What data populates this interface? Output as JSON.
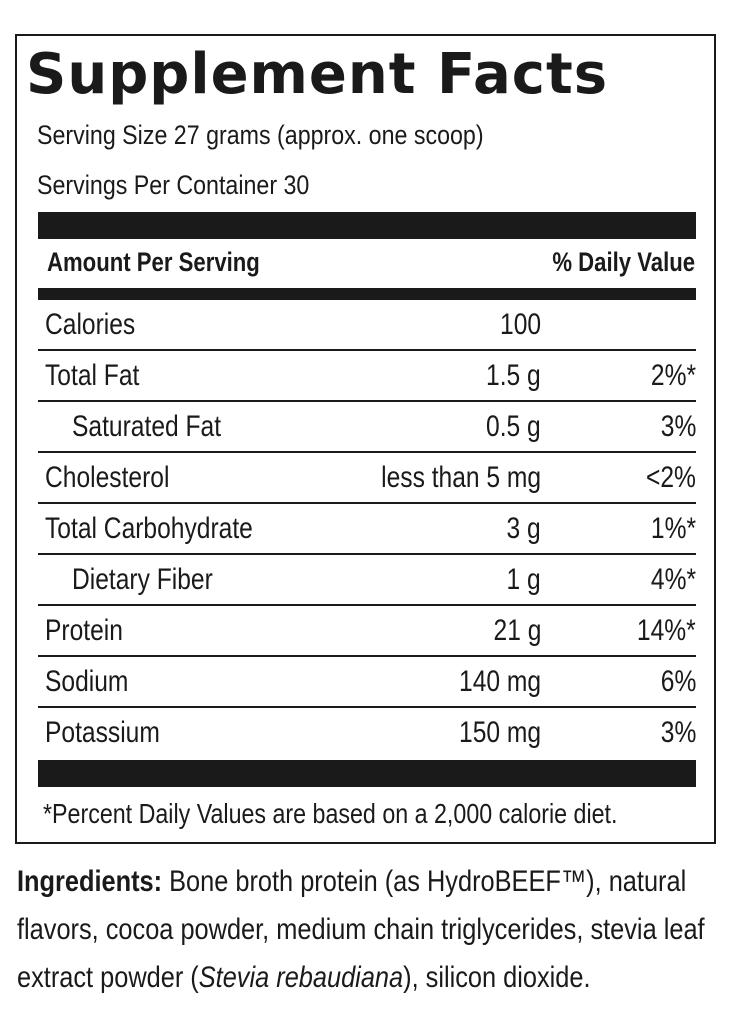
{
  "panel": {
    "title": "Supplement Facts",
    "serving_size": "Serving Size 27 grams (approx. one scoop)",
    "servings_per_container": "Servings Per Container 30",
    "header_left": "Amount Per Serving",
    "header_right": "% Daily Value",
    "rows": [
      {
        "name": "Calories",
        "amount": "100",
        "dv": "",
        "indent": false
      },
      {
        "name": "Total Fat",
        "amount": "1.5 g",
        "dv": "2%*",
        "indent": false
      },
      {
        "name": "Saturated Fat",
        "amount": "0.5 g",
        "dv": "3%",
        "indent": true
      },
      {
        "name": "Cholesterol",
        "amount": "less than 5 mg",
        "dv": "<2%",
        "indent": false
      },
      {
        "name": "Total Carbohydrate",
        "amount": "3 g",
        "dv": "1%*",
        "indent": false
      },
      {
        "name": "Dietary Fiber",
        "amount": "1 g",
        "dv": "4%*",
        "indent": true
      },
      {
        "name": "Protein",
        "amount": "21 g",
        "dv": "14%*",
        "indent": false
      },
      {
        "name": "Sodium",
        "amount": "140 mg",
        "dv": "6%",
        "indent": false
      },
      {
        "name": "Potassium",
        "amount": "150 mg",
        "dv": "3%",
        "indent": false
      }
    ],
    "footnote": "*Percent Daily Values are based on a 2,000 calorie diet."
  },
  "ingredients": {
    "label": "Ingredients:",
    "text_1": " Bone broth protein (as HydroBEEF™), natural flavors, cocoa powder, medium chain triglycerides, stevia leaf extract powder (",
    "text_italic": "Stevia rebaudiana",
    "text_2": "), silicon dioxide."
  }
}
